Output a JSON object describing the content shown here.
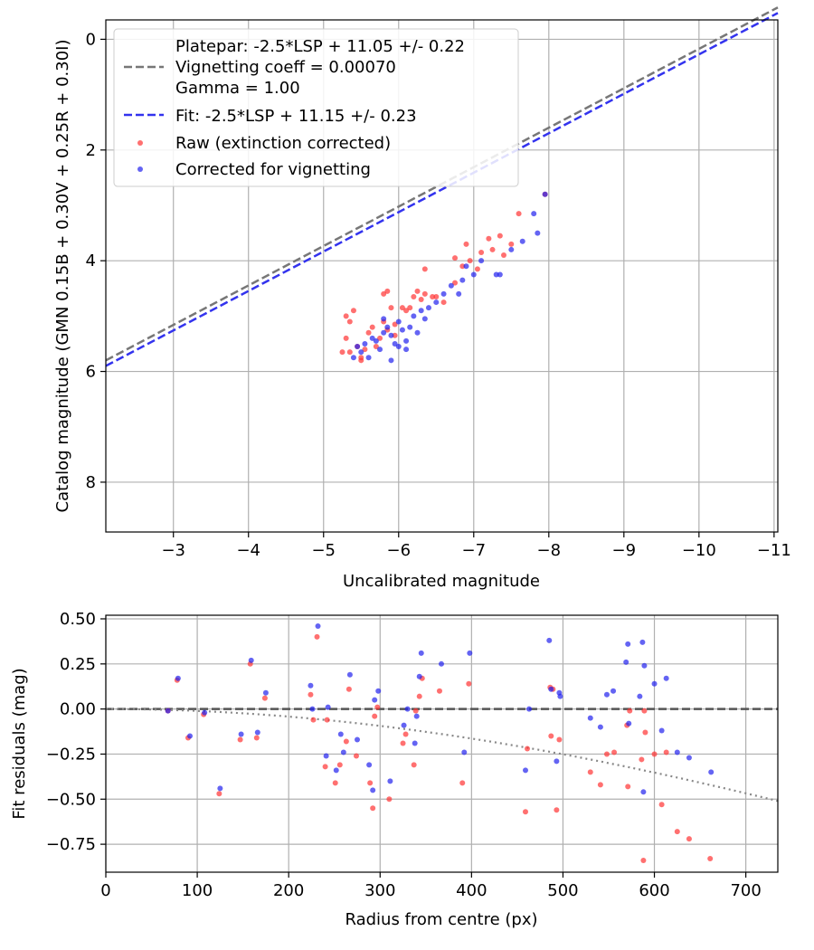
{
  "chart_data": [
    {
      "type": "scatter",
      "xlabel": "Uncalibrated magnitude",
      "ylabel": "Catalog magnitude (GMN 0.15B + 0.30V + 0.25R + 0.30I)",
      "xlim": [
        -2.1,
        -11.05
      ],
      "ylim": [
        8.9,
        -0.35
      ],
      "x_ticks": [
        -3,
        -4,
        -5,
        -6,
        -7,
        -8,
        -9,
        -10,
        -11
      ],
      "x_tick_labels": [
        "−3",
        "−4",
        "−5",
        "−6",
        "−7",
        "−8",
        "−9",
        "−10",
        "−11"
      ],
      "y_ticks": [
        0,
        2,
        4,
        6,
        8
      ],
      "y_tick_labels": [
        "0",
        "2",
        "4",
        "6",
        "8"
      ],
      "grid": true,
      "legend_position": "top-left",
      "legend": [
        {
          "label": "Platepar: -2.5*LSP + 11.05 +/- 0.22",
          "style": "none"
        },
        {
          "label": "Vignetting coeff = 0.00070",
          "style": "dashed-gray"
        },
        {
          "label": "Gamma = 1.00",
          "style": "none"
        },
        {
          "label": "Fit: -2.5*LSP + 11.15 +/- 0.23",
          "style": "dashed-blue"
        },
        {
          "label": "Raw (extinction corrected)",
          "style": "red-dot"
        },
        {
          "label": "Corrected for vignetting",
          "style": "blue-dot"
        }
      ],
      "lines": [
        {
          "name": "Platepar",
          "color": "#777777",
          "x": [
            -2.1,
            -11.05
          ],
          "y": [
            5.8,
            -0.575
          ]
        },
        {
          "name": "Fit",
          "color": "#3333ee",
          "x": [
            -2.1,
            -11.05
          ],
          "y": [
            5.9,
            -0.475
          ]
        }
      ],
      "series": [
        {
          "name": "Raw (extinction corrected)",
          "color": "#ff3333",
          "points": [
            [
              -5.25,
              5.65
            ],
            [
              -5.3,
              5.0
            ],
            [
              -5.35,
              5.1
            ],
            [
              -5.3,
              5.4
            ],
            [
              -5.35,
              5.65
            ],
            [
              -5.4,
              4.9
            ],
            [
              -5.45,
              5.55
            ],
            [
              -5.5,
              5.75
            ],
            [
              -5.55,
              5.6
            ],
            [
              -5.6,
              5.3
            ],
            [
              -5.65,
              5.2
            ],
            [
              -5.7,
              5.55
            ],
            [
              -5.75,
              5.4
            ],
            [
              -5.8,
              5.1
            ],
            [
              -5.85,
              5.25
            ],
            [
              -5.9,
              4.85
            ],
            [
              -5.95,
              5.35
            ],
            [
              -5.85,
              4.55
            ],
            [
              -5.8,
              4.6
            ],
            [
              -5.95,
              5.15
            ],
            [
              -6.05,
              4.85
            ],
            [
              -6.1,
              4.9
            ],
            [
              -6.15,
              4.85
            ],
            [
              -6.2,
              4.65
            ],
            [
              -6.25,
              4.55
            ],
            [
              -6.3,
              4.7
            ],
            [
              -6.35,
              4.6
            ],
            [
              -6.45,
              4.65
            ],
            [
              -6.5,
              4.65
            ],
            [
              -6.6,
              4.75
            ],
            [
              -6.75,
              4.4
            ],
            [
              -6.85,
              4.1
            ],
            [
              -6.95,
              4.0
            ],
            [
              -7.05,
              4.15
            ],
            [
              -6.75,
              3.95
            ],
            [
              -6.9,
              3.7
            ],
            [
              -7.1,
              3.85
            ],
            [
              -7.2,
              3.6
            ],
            [
              -7.25,
              3.8
            ],
            [
              -7.35,
              3.55
            ],
            [
              -7.4,
              3.9
            ],
            [
              -7.5,
              3.7
            ],
            [
              -7.6,
              3.15
            ],
            [
              -7.95,
              2.8
            ],
            [
              -6.35,
              4.15
            ],
            [
              -5.5,
              5.8
            ]
          ]
        },
        {
          "name": "Corrected for vignetting",
          "color": "#2222ee",
          "points": [
            [
              -5.4,
              5.75
            ],
            [
              -5.45,
              5.55
            ],
            [
              -5.5,
              5.65
            ],
            [
              -5.55,
              5.5
            ],
            [
              -5.6,
              5.75
            ],
            [
              -5.65,
              5.4
            ],
            [
              -5.7,
              5.45
            ],
            [
              -5.75,
              5.6
            ],
            [
              -5.8,
              5.3
            ],
            [
              -5.85,
              5.2
            ],
            [
              -5.9,
              5.35
            ],
            [
              -5.95,
              5.5
            ],
            [
              -6.0,
              5.1
            ],
            [
              -6.0,
              5.55
            ],
            [
              -6.05,
              5.25
            ],
            [
              -6.1,
              5.45
            ],
            [
              -6.15,
              5.2
            ],
            [
              -6.2,
              5.0
            ],
            [
              -6.25,
              5.3
            ],
            [
              -6.3,
              4.9
            ],
            [
              -6.35,
              5.05
            ],
            [
              -6.4,
              4.85
            ],
            [
              -6.5,
              4.75
            ],
            [
              -6.6,
              4.6
            ],
            [
              -6.7,
              4.45
            ],
            [
              -6.8,
              4.6
            ],
            [
              -6.85,
              4.35
            ],
            [
              -6.9,
              4.1
            ],
            [
              -7.0,
              4.25
            ],
            [
              -7.1,
              4.0
            ],
            [
              -7.3,
              4.25
            ],
            [
              -7.35,
              4.25
            ],
            [
              -7.5,
              3.8
            ],
            [
              -7.65,
              3.65
            ],
            [
              -7.85,
              3.5
            ],
            [
              -7.8,
              3.15
            ],
            [
              -7.95,
              2.8
            ],
            [
              -5.8,
              5.05
            ],
            [
              -6.1,
              5.6
            ],
            [
              -5.9,
              5.8
            ]
          ]
        }
      ]
    },
    {
      "type": "scatter",
      "xlabel": "Radius from centre (px)",
      "ylabel": "Fit residuals (mag)",
      "xlim": [
        0,
        735
      ],
      "ylim": [
        -0.905,
        0.52
      ],
      "x_ticks": [
        0,
        100,
        200,
        300,
        400,
        500,
        600,
        700
      ],
      "x_tick_labels": [
        "0",
        "100",
        "200",
        "300",
        "400",
        "500",
        "600",
        "700"
      ],
      "y_ticks": [
        0.5,
        0.25,
        0.0,
        -0.25,
        -0.5,
        -0.75
      ],
      "y_tick_labels": [
        "0.50",
        "0.25",
        "0.00",
        "−0.25",
        "−0.50",
        "−0.75"
      ],
      "grid": true,
      "reference_line": {
        "y": 0.0,
        "color": "#555555",
        "style": "dashed"
      },
      "vignetting_curve": {
        "coeff": 0.0007,
        "color": "#888888",
        "style": "dotted"
      },
      "series": [
        {
          "name": "Raw (extinction corrected)",
          "color": "#ff3333",
          "points": [
            [
              68,
              -0.01
            ],
            [
              78,
              0.16
            ],
            [
              90,
              -0.16
            ],
            [
              107,
              -0.03
            ],
            [
              124,
              -0.47
            ],
            [
              147,
              -0.17
            ],
            [
              158,
              0.25
            ],
            [
              165,
              -0.16
            ],
            [
              174,
              0.06
            ],
            [
              224,
              0.08
            ],
            [
              227,
              -0.06
            ],
            [
              231,
              0.4
            ],
            [
              240,
              -0.32
            ],
            [
              242,
              -0.06
            ],
            [
              251,
              -0.41
            ],
            [
              256,
              -0.31
            ],
            [
              263,
              -0.18
            ],
            [
              266,
              0.11
            ],
            [
              274,
              -0.26
            ],
            [
              289,
              -0.41
            ],
            [
              292,
              -0.55
            ],
            [
              294,
              -0.04
            ],
            [
              297,
              0.01
            ],
            [
              310,
              -0.5
            ],
            [
              325,
              -0.19
            ],
            [
              328,
              -0.14
            ],
            [
              337,
              -0.31
            ],
            [
              339,
              -0.01
            ],
            [
              343,
              0.07
            ],
            [
              346,
              0.17
            ],
            [
              365,
              0.1
            ],
            [
              390,
              -0.41
            ],
            [
              397,
              0.14
            ],
            [
              459,
              -0.57
            ],
            [
              461,
              -0.22
            ],
            [
              486,
              0.12
            ],
            [
              487,
              -0.15
            ],
            [
              489,
              0.11
            ],
            [
              493,
              -0.56
            ],
            [
              496,
              -0.17
            ],
            [
              530,
              -0.35
            ],
            [
              541,
              -0.42
            ],
            [
              548,
              -0.25
            ],
            [
              556,
              -0.24
            ],
            [
              570,
              -0.09
            ],
            [
              571,
              -0.43
            ],
            [
              573,
              -0.01
            ],
            [
              586,
              -0.28
            ],
            [
              588,
              -0.84
            ],
            [
              589,
              -0.01
            ],
            [
              590,
              -0.13
            ],
            [
              600,
              -0.25
            ],
            [
              608,
              -0.53
            ],
            [
              613,
              -0.24
            ],
            [
              625,
              -0.68
            ],
            [
              638,
              -0.72
            ],
            [
              661,
              -0.83
            ]
          ]
        },
        {
          "name": "Corrected for vignetting",
          "color": "#2222ee",
          "points": [
            [
              68,
              -0.01
            ],
            [
              79,
              0.17
            ],
            [
              92,
              -0.15
            ],
            [
              108,
              -0.02
            ],
            [
              125,
              -0.44
            ],
            [
              148,
              -0.14
            ],
            [
              159,
              0.27
            ],
            [
              166,
              -0.13
            ],
            [
              175,
              0.09
            ],
            [
              224,
              0.13
            ],
            [
              226,
              0.0
            ],
            [
              232,
              0.46
            ],
            [
              241,
              -0.26
            ],
            [
              243,
              0.01
            ],
            [
              252,
              -0.34
            ],
            [
              257,
              -0.14
            ],
            [
              260,
              -0.24
            ],
            [
              267,
              0.19
            ],
            [
              275,
              -0.17
            ],
            [
              288,
              -0.31
            ],
            [
              292,
              -0.45
            ],
            [
              294,
              0.05
            ],
            [
              298,
              0.1
            ],
            [
              311,
              -0.4
            ],
            [
              326,
              -0.09
            ],
            [
              330,
              0.0
            ],
            [
              338,
              -0.19
            ],
            [
              340,
              -0.04
            ],
            [
              343,
              0.18
            ],
            [
              345,
              0.31
            ],
            [
              367,
              0.25
            ],
            [
              392,
              -0.24
            ],
            [
              398,
              0.31
            ],
            [
              459,
              -0.34
            ],
            [
              463,
              0.0
            ],
            [
              485,
              0.38
            ],
            [
              487,
              0.11
            ],
            [
              493,
              -0.29
            ],
            [
              496,
              0.09
            ],
            [
              497,
              0.07
            ],
            [
              530,
              -0.05
            ],
            [
              541,
              -0.1
            ],
            [
              548,
              0.08
            ],
            [
              555,
              0.1
            ],
            [
              569,
              0.26
            ],
            [
              571,
              0.36
            ],
            [
              572,
              -0.08
            ],
            [
              584,
              0.07
            ],
            [
              587,
              0.37
            ],
            [
              589,
              0.24
            ],
            [
              588,
              -0.46
            ],
            [
              600,
              0.14
            ],
            [
              608,
              -0.12
            ],
            [
              613,
              0.17
            ],
            [
              625,
              -0.24
            ],
            [
              638,
              -0.27
            ],
            [
              662,
              -0.35
            ]
          ]
        }
      ]
    }
  ]
}
